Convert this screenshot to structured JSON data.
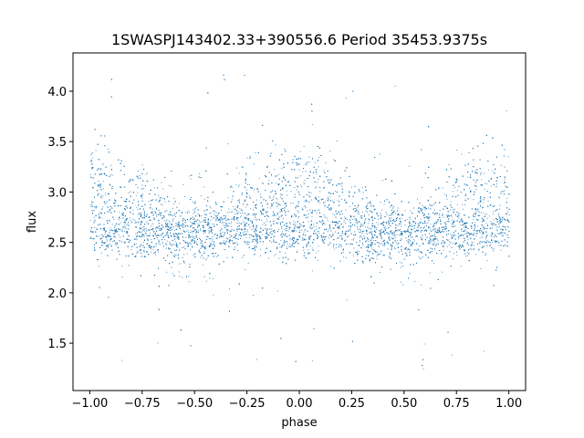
{
  "chart_data": {
    "type": "scatter",
    "title": "1SWASPJ143402.33+390556.6 Period 35453.9375s",
    "xlabel": "phase",
    "ylabel": "flux",
    "xlim": [
      -1.08,
      1.08
    ],
    "ylim": [
      1.03,
      4.38
    ],
    "xticks": [
      -1.0,
      -0.75,
      -0.5,
      -0.25,
      0.0,
      0.25,
      0.5,
      0.75,
      1.0
    ],
    "xtick_labels": [
      "−1.00",
      "−0.75",
      "−0.50",
      "−0.25",
      "0.00",
      "0.25",
      "0.50",
      "0.75",
      "1.00"
    ],
    "yticks": [
      1.5,
      2.0,
      2.5,
      3.0,
      3.5,
      4.0
    ],
    "ytick_labels": [
      "1.5",
      "2.0",
      "2.5",
      "3.0",
      "3.5",
      "4.0"
    ],
    "grid": false,
    "marker_color": "#1f77b4",
    "x_range": [
      -1.0,
      1.0
    ],
    "description_of_series": "dense phase-folded light curve; baseline flux near 2.6, broad humps near 3.0-3.1 at phase -1.0, 0.0 and 1.0, scattered outliers between 1.2 and 4.2"
  }
}
